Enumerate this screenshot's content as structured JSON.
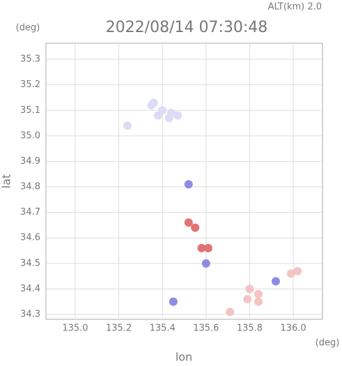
{
  "chart_data": {
    "type": "scatter",
    "title": "2022/08/14 07:30:48",
    "subtitle": "ALT(km) 2.0",
    "x_label": "lon",
    "y_label": "lat",
    "x_unit": "(deg)",
    "y_unit": "(deg)",
    "xlim": [
      134.866,
      136.134
    ],
    "ylim": [
      34.281,
      35.363
    ],
    "xticks": [
      {
        "value": 135,
        "label": "135.0"
      },
      135.2,
      135.4,
      135.6,
      135.8,
      {
        "value": 136,
        "label": "136.0"
      }
    ],
    "yticks": [
      35.3,
      35.2,
      35.1,
      {
        "value": 35,
        "label": "35.0"
      },
      34.9,
      34.8,
      34.7,
      34.6,
      34.5,
      34.4,
      34.3
    ],
    "grid": true,
    "series": [
      {
        "color": "#dcdcf6",
        "x": [
          135.35,
          135.4,
          135.44,
          135.38,
          135.43,
          135.47,
          135.36,
          135.24
        ],
        "y": [
          35.12,
          35.1,
          35.09,
          35.08,
          35.07,
          35.08,
          35.13,
          35.04
        ]
      },
      {
        "color": "#8c8ce2",
        "x": [
          135.52,
          135.6,
          135.92,
          135.45
        ],
        "y": [
          34.81,
          34.5,
          34.43,
          34.35
        ]
      },
      {
        "color": "#f4c4c4",
        "x": [
          135.8,
          135.79,
          135.84,
          136.02,
          135.99,
          135.71,
          135.84
        ],
        "y": [
          34.4,
          34.36,
          34.38,
          34.47,
          34.46,
          34.31,
          34.35
        ]
      },
      {
        "color": "#e07474",
        "x": [
          135.55,
          135.58,
          135.61,
          135.52
        ],
        "y": [
          34.64,
          34.56,
          34.56,
          34.66
        ]
      }
    ]
  }
}
